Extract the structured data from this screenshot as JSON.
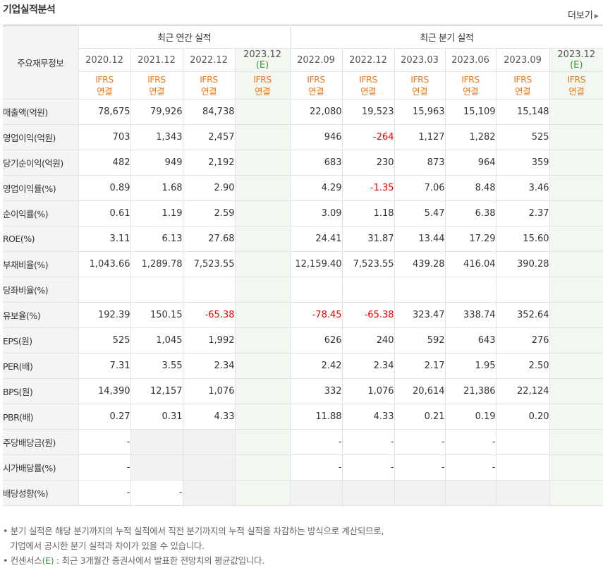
{
  "header": {
    "title": "기업실적분석",
    "more_label": "더보기"
  },
  "table": {
    "corner_label": "주요재무정보",
    "annual_group": "최근 연간 실적",
    "quarter_group": "최근 분기 실적",
    "annual_dates": [
      "2020.12",
      "2021.12",
      "2022.12",
      "2023.12"
    ],
    "quarter_dates": [
      "2022.09",
      "2022.12",
      "2023.03",
      "2023.06",
      "2023.09",
      "2023.12"
    ],
    "estimate_mark": "(E)",
    "ifrs_line1": "IFRS",
    "ifrs_line2": "연결",
    "rows": [
      {
        "label": "매출액(억원)",
        "values": [
          "78,675",
          "79,926",
          "84,738",
          "",
          "22,080",
          "19,523",
          "15,963",
          "15,109",
          "15,148",
          ""
        ]
      },
      {
        "label": "영업이익(억원)",
        "values": [
          "703",
          "1,343",
          "2,457",
          "",
          "946",
          "-264",
          "1,127",
          "1,282",
          "525",
          ""
        ]
      },
      {
        "label": "당기순이익(억원)",
        "values": [
          "482",
          "949",
          "2,192",
          "",
          "683",
          "230",
          "873",
          "964",
          "359",
          ""
        ]
      },
      {
        "label": "영업이익률(%)",
        "values": [
          "0.89",
          "1.68",
          "2.90",
          "",
          "4.29",
          "-1.35",
          "7.06",
          "8.48",
          "3.46",
          ""
        ]
      },
      {
        "label": "순이익률(%)",
        "values": [
          "0.61",
          "1.19",
          "2.59",
          "",
          "3.09",
          "1.18",
          "5.47",
          "6.38",
          "2.37",
          ""
        ]
      },
      {
        "label": "ROE(%)",
        "values": [
          "3.11",
          "6.13",
          "27.68",
          "",
          "24.41",
          "31.87",
          "13.44",
          "17.29",
          "15.60",
          ""
        ]
      },
      {
        "label": "부채비율(%)",
        "values": [
          "1,043.66",
          "1,289.78",
          "7,523.55",
          "",
          "12,159.40",
          "7,523.55",
          "439.28",
          "416.04",
          "390.28",
          ""
        ]
      },
      {
        "label": "당좌비율(%)",
        "values": [
          "",
          "",
          "",
          "",
          "",
          "",
          "",
          "",
          "",
          ""
        ]
      },
      {
        "label": "유보율(%)",
        "values": [
          "192.39",
          "150.15",
          "-65.38",
          "",
          "-78.45",
          "-65.38",
          "323.47",
          "338.74",
          "352.64",
          ""
        ]
      },
      {
        "label": "EPS(원)",
        "values": [
          "525",
          "1,045",
          "1,992",
          "",
          "626",
          "240",
          "592",
          "643",
          "276",
          ""
        ]
      },
      {
        "label": "PER(배)",
        "values": [
          "7.31",
          "3.55",
          "2.34",
          "",
          "2.42",
          "2.34",
          "2.17",
          "1.95",
          "2.50",
          ""
        ]
      },
      {
        "label": "BPS(원)",
        "values": [
          "14,390",
          "12,157",
          "1,076",
          "",
          "332",
          "1,076",
          "20,614",
          "21,386",
          "22,124",
          ""
        ]
      },
      {
        "label": "PBR(배)",
        "values": [
          "0.27",
          "0.31",
          "4.33",
          "",
          "11.88",
          "4.33",
          "0.21",
          "0.19",
          "0.20",
          ""
        ]
      },
      {
        "label": "주당배당금(원)",
        "values": [
          "-",
          "",
          "",
          "",
          "-",
          "-",
          "-",
          "-",
          "",
          ""
        ]
      },
      {
        "label": "시가배당률(%)",
        "values": [
          "-",
          "",
          "",
          "",
          "-",
          "-",
          "-",
          "-",
          "",
          ""
        ]
      },
      {
        "label": "배당성향(%)",
        "values": [
          "-",
          "-",
          "",
          "",
          "",
          "",
          "",
          "",
          "",
          ""
        ]
      }
    ]
  },
  "notes": {
    "line1": "분기 실적은 해당 분기까지의 누적 실적에서 직전 분기까지의 누적 실적을 차감하는 방식으로 계산되므로,",
    "line2": "기업에서 공시한 분기 실적과 차이가 있을 수 있습니다.",
    "line3_prefix": "컨센서스",
    "line3_mark": "(E)",
    "line3_suffix": ": 최근 3개월간 증권사에서 발표한 전망치의 평균값입니다.",
    "bullet": "•"
  },
  "colors": {
    "accent_orange": "#f07a1b",
    "estimate_green": "#3a9a3a",
    "negative_red": "#e00000",
    "estimate_bg": "#f2f8f0"
  }
}
